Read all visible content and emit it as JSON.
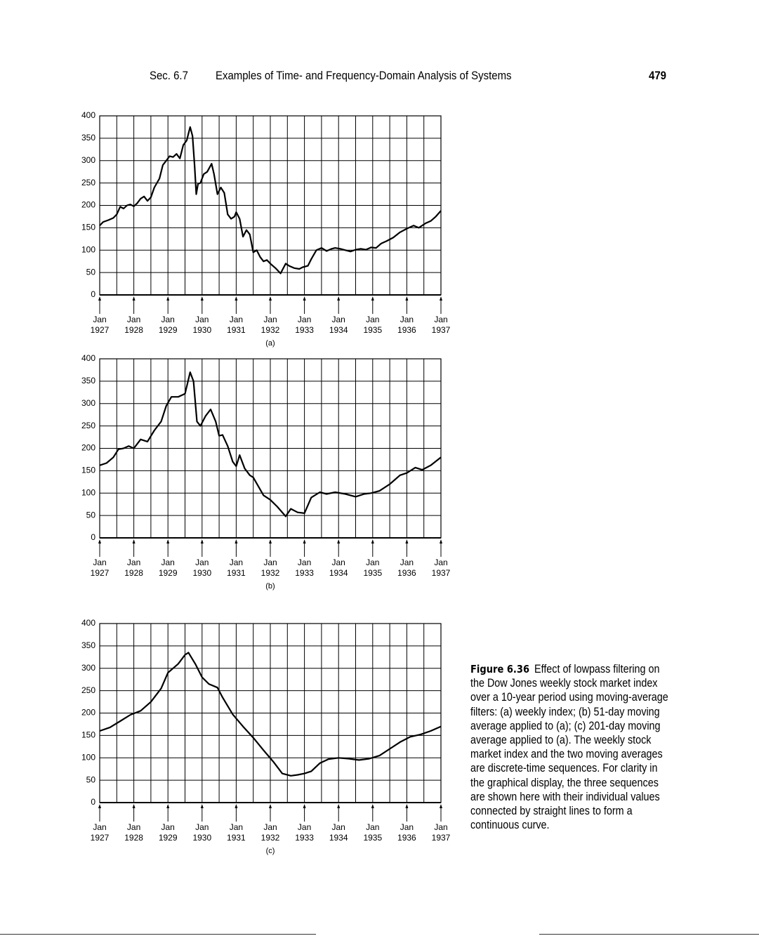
{
  "header": {
    "section": "Sec. 6.7",
    "title": "Examples of Time- and Frequency-Domain Analysis of Systems",
    "page": "479"
  },
  "chart_data": [
    {
      "type": "line",
      "subtitle": "(a)",
      "color": "#000000",
      "grid": true,
      "x": [
        1927.0,
        1927.1,
        1927.25,
        1927.4,
        1927.5,
        1927.6,
        1927.7,
        1927.8,
        1927.9,
        1928.0,
        1928.1,
        1928.2,
        1928.3,
        1928.4,
        1928.5,
        1928.6,
        1928.75,
        1928.85,
        1928.95,
        1929.05,
        1929.15,
        1929.25,
        1929.35,
        1929.45,
        1929.55,
        1929.65,
        1929.72,
        1929.78,
        1929.83,
        1929.88,
        1929.95,
        1930.05,
        1930.15,
        1930.28,
        1930.35,
        1930.45,
        1930.55,
        1930.65,
        1930.75,
        1930.85,
        1930.95,
        1931.0,
        1931.1,
        1931.2,
        1931.3,
        1931.4,
        1931.5,
        1931.6,
        1931.7,
        1931.8,
        1931.9,
        1932.0,
        1932.15,
        1932.3,
        1932.45,
        1932.55,
        1932.7,
        1932.85,
        1932.95,
        1933.1,
        1933.2,
        1933.35,
        1933.5,
        1933.65,
        1933.8,
        1933.9,
        1934.05,
        1934.2,
        1934.35,
        1934.5,
        1934.65,
        1934.8,
        1934.95,
        1935.1,
        1935.25,
        1935.4,
        1935.6,
        1935.8,
        1936.0,
        1936.2,
        1936.35,
        1936.55,
        1936.7,
        1936.85,
        1937.0
      ],
      "values": [
        155,
        163,
        167,
        172,
        180,
        197,
        193,
        200,
        202,
        198,
        205,
        215,
        220,
        210,
        218,
        240,
        260,
        290,
        300,
        310,
        308,
        315,
        305,
        335,
        345,
        375,
        355,
        290,
        225,
        248,
        250,
        270,
        275,
        293,
        270,
        225,
        240,
        228,
        180,
        170,
        175,
        185,
        170,
        130,
        145,
        135,
        95,
        100,
        85,
        75,
        78,
        70,
        60,
        48,
        70,
        65,
        60,
        58,
        62,
        65,
        80,
        100,
        105,
        98,
        103,
        105,
        103,
        100,
        97,
        101,
        103,
        101,
        106,
        105,
        115,
        120,
        128,
        140,
        148,
        155,
        150,
        160,
        165,
        175,
        188
      ],
      "xlim": [
        1927,
        1937
      ],
      "ylim": [
        0,
        400
      ],
      "xticks": [
        {
          "value": 1927,
          "label": "Jan 1927"
        },
        {
          "value": 1928,
          "label": "Jan 1928"
        },
        {
          "value": 1929,
          "label": "Jan 1929"
        },
        {
          "value": 1930,
          "label": "Jan 1930"
        },
        {
          "value": 1931,
          "label": "Jan 1931"
        },
        {
          "value": 1932,
          "label": "Jan 1932"
        },
        {
          "value": 1933,
          "label": "Jan 1933"
        },
        {
          "value": 1934,
          "label": "Jan 1934"
        },
        {
          "value": 1935,
          "label": "Jan 1935"
        },
        {
          "value": 1936,
          "label": "Jan 1936"
        },
        {
          "value": 1937,
          "label": "Jan 1937"
        }
      ],
      "yticks": [
        0,
        50,
        100,
        150,
        200,
        250,
        300,
        350,
        400
      ]
    },
    {
      "type": "line",
      "subtitle": "(b)",
      "color": "#000000",
      "grid": true,
      "x": [
        1927.0,
        1927.2,
        1927.4,
        1927.55,
        1927.7,
        1927.85,
        1928.0,
        1928.2,
        1928.4,
        1928.6,
        1928.8,
        1928.95,
        1929.1,
        1929.3,
        1929.5,
        1929.65,
        1929.75,
        1929.85,
        1929.95,
        1930.1,
        1930.25,
        1930.4,
        1930.5,
        1930.6,
        1930.75,
        1930.9,
        1931.0,
        1931.1,
        1931.25,
        1931.4,
        1931.5,
        1931.65,
        1931.8,
        1932.0,
        1932.2,
        1932.45,
        1932.6,
        1932.8,
        1933.0,
        1933.2,
        1933.45,
        1933.65,
        1933.9,
        1934.2,
        1934.5,
        1934.75,
        1934.95,
        1935.2,
        1935.5,
        1935.8,
        1936.0,
        1936.25,
        1936.45,
        1936.7,
        1937.0
      ],
      "values": [
        162,
        167,
        180,
        198,
        200,
        205,
        200,
        220,
        215,
        240,
        260,
        295,
        315,
        315,
        322,
        370,
        350,
        260,
        250,
        272,
        287,
        260,
        228,
        230,
        205,
        170,
        160,
        185,
        155,
        140,
        135,
        115,
        95,
        85,
        70,
        48,
        65,
        57,
        55,
        90,
        102,
        98,
        102,
        98,
        92,
        98,
        100,
        105,
        120,
        140,
        145,
        157,
        152,
        162,
        180
      ],
      "xlim": [
        1927,
        1937
      ],
      "ylim": [
        0,
        400
      ],
      "xticks": [
        {
          "value": 1927,
          "label": "Jan 1927"
        },
        {
          "value": 1928,
          "label": "Jan 1928"
        },
        {
          "value": 1929,
          "label": "Jan 1929"
        },
        {
          "value": 1930,
          "label": "Jan 1930"
        },
        {
          "value": 1931,
          "label": "Jan 1931"
        },
        {
          "value": 1932,
          "label": "Jan 1932"
        },
        {
          "value": 1933,
          "label": "Jan 1933"
        },
        {
          "value": 1934,
          "label": "Jan 1934"
        },
        {
          "value": 1935,
          "label": "Jan 1935"
        },
        {
          "value": 1936,
          "label": "Jan 1936"
        },
        {
          "value": 1937,
          "label": "Jan 1937"
        }
      ],
      "yticks": [
        0,
        50,
        100,
        150,
        200,
        250,
        300,
        350,
        400
      ]
    },
    {
      "type": "line",
      "subtitle": "(c)",
      "color": "#000000",
      "grid": true,
      "x": [
        1927.0,
        1927.3,
        1927.6,
        1927.9,
        1928.2,
        1928.5,
        1928.8,
        1929.0,
        1929.3,
        1929.5,
        1929.6,
        1929.8,
        1930.0,
        1930.2,
        1930.45,
        1930.6,
        1930.9,
        1931.2,
        1931.5,
        1931.8,
        1932.1,
        1932.35,
        1932.6,
        1932.8,
        1933.0,
        1933.2,
        1933.45,
        1933.7,
        1934.0,
        1934.3,
        1934.6,
        1934.9,
        1935.2,
        1935.5,
        1935.8,
        1936.1,
        1936.4,
        1936.7,
        1937.0
      ],
      "values": [
        160,
        168,
        182,
        196,
        205,
        225,
        255,
        290,
        310,
        330,
        335,
        310,
        280,
        265,
        257,
        235,
        197,
        170,
        145,
        117,
        90,
        65,
        60,
        62,
        65,
        70,
        88,
        97,
        100,
        98,
        95,
        98,
        105,
        120,
        135,
        147,
        152,
        160,
        170
      ],
      "xlim": [
        1927,
        1937
      ],
      "ylim": [
        0,
        400
      ],
      "xticks": [
        {
          "value": 1927,
          "label": "Jan 1927"
        },
        {
          "value": 1928,
          "label": "Jan 1928"
        },
        {
          "value": 1929,
          "label": "Jan 1929"
        },
        {
          "value": 1930,
          "label": "Jan 1930"
        },
        {
          "value": 1931,
          "label": "Jan 1931"
        },
        {
          "value": 1932,
          "label": "Jan 1932"
        },
        {
          "value": 1933,
          "label": "Jan 1933"
        },
        {
          "value": 1934,
          "label": "Jan 1934"
        },
        {
          "value": 1935,
          "label": "Jan 1935"
        },
        {
          "value": 1936,
          "label": "Jan 1936"
        },
        {
          "value": 1937,
          "label": "Jan 1937"
        }
      ],
      "yticks": [
        0,
        50,
        100,
        150,
        200,
        250,
        300,
        350,
        400
      ]
    }
  ],
  "caption": {
    "label": "Figure 6.36",
    "text": "Effect of lowpass filtering on the Dow Jones weekly stock market index over a 10-year period using moving-average filters: (a) weekly index; (b) 51-day moving average applied to (a); (c) 201-day moving average applied to (a). The weekly stock market index and the two moving averages are discrete-time sequences. For clarity in the graphical display, the three sequences are shown here with their individual values connected by straight lines to form a continuous curve."
  }
}
